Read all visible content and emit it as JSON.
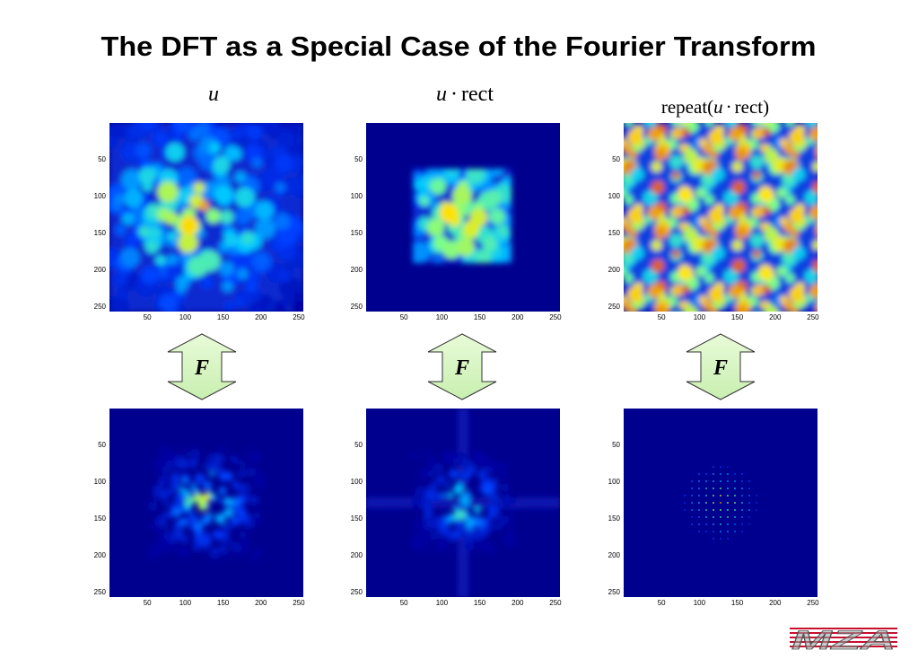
{
  "title": "The DFT as a Special Case of the  Fourier Transform",
  "columns": [
    {
      "label": [
        "u"
      ]
    },
    {
      "label": [
        "u",
        "·",
        "rect"
      ]
    },
    {
      "label": [
        "repeat(",
        "u",
        "·",
        "rect)"
      ]
    }
  ],
  "operator": "F",
  "axis_ticks": [
    50,
    100,
    150,
    200,
    250
  ],
  "logo": "MZA"
}
